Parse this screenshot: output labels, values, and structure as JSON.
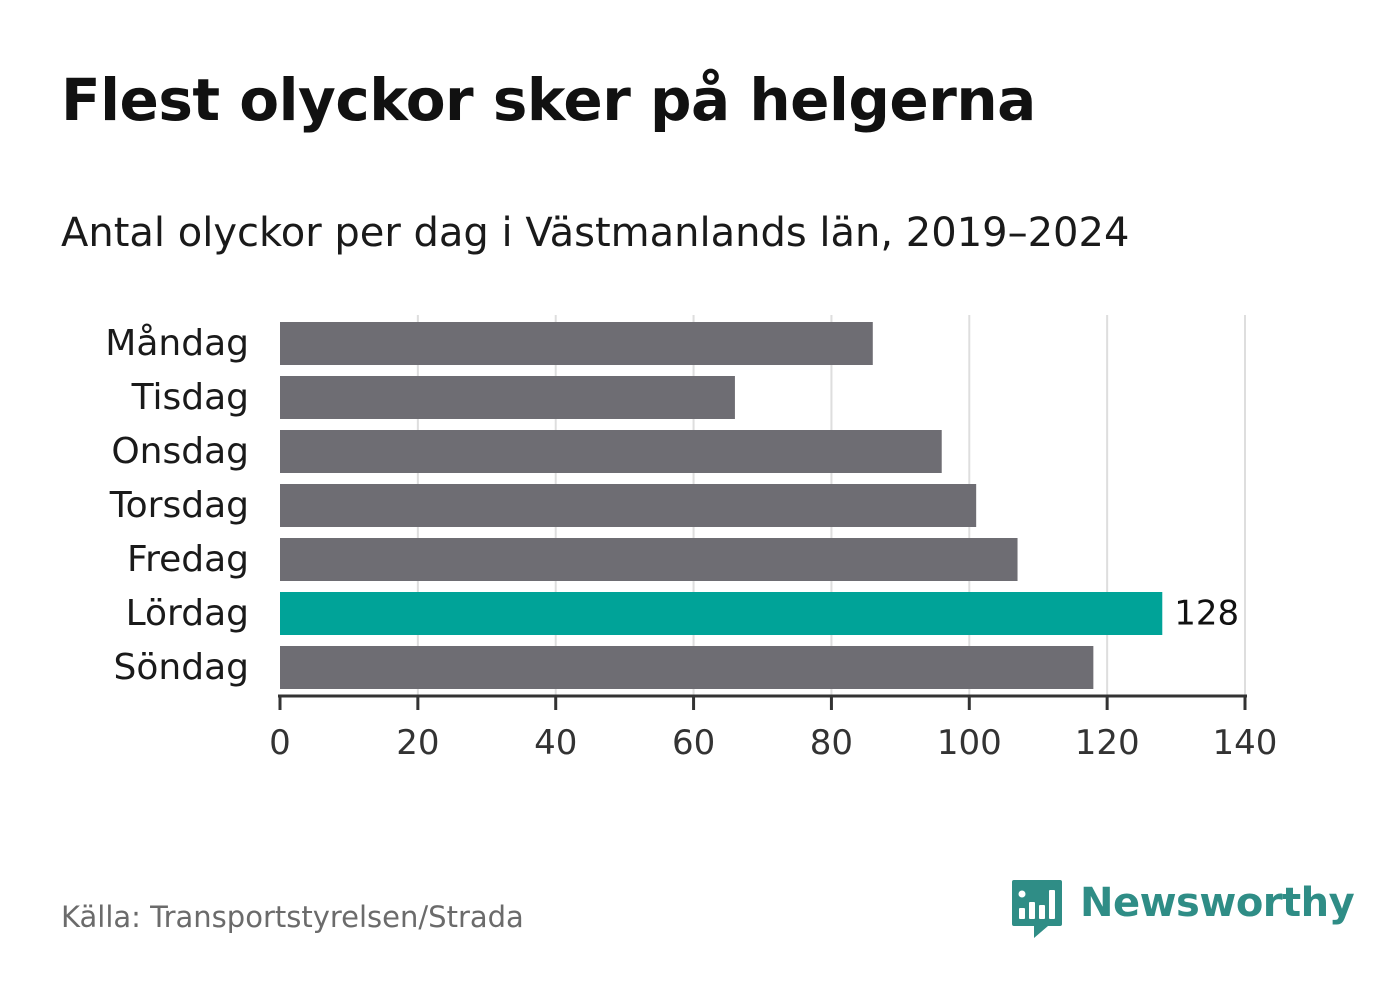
{
  "title": "Flest olyckor sker på helgerna",
  "subtitle": "Antal olyckor per dag i Västmanlands län, 2019–2024",
  "source": "Källa: Transportstyrelsen/Strada",
  "logo": {
    "text": "Newsworthy",
    "color": "#2f8d86"
  },
  "colors": {
    "bar": "#6e6d73",
    "highlight": "#00a398",
    "grid": "#dedede",
    "axis": "#333333"
  },
  "chart_data": {
    "type": "bar",
    "orientation": "horizontal",
    "categories": [
      "Måndag",
      "Tisdag",
      "Onsdag",
      "Torsdag",
      "Fredag",
      "Lördag",
      "Söndag"
    ],
    "values": [
      86,
      66,
      96,
      101,
      107,
      128,
      118
    ],
    "highlight_index": 5,
    "data_labels": {
      "5": "128"
    },
    "xlim": [
      0,
      140
    ],
    "xticks": [
      0,
      20,
      40,
      60,
      80,
      100,
      120,
      140
    ],
    "grid": true,
    "legend": "none"
  }
}
